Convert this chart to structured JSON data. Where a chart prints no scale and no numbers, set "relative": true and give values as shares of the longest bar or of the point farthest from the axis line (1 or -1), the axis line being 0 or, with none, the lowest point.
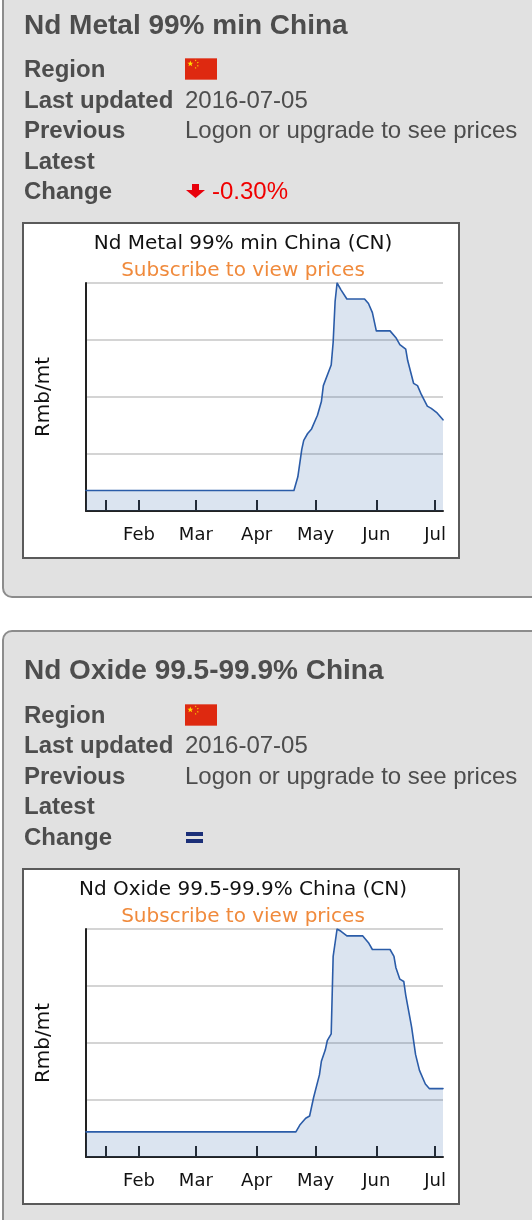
{
  "chart_data": [
    {
      "type": "other",
      "title": "Nd Metal 99% min China",
      "annotations": [
        "Region",
        "Last updated",
        "2016-07-05",
        "Previous",
        "Logon or upgrade to see prices",
        "Latest",
        "Change",
        "-0.30%"
      ]
    },
    {
      "type": "area",
      "title": "Nd Metal 99% min China (CN)",
      "subtitle": "Subscribe to view prices",
      "ylabel": "Rmb/mt",
      "relative": true,
      "x": [
        "--01-05",
        "--04-20",
        "--04-22",
        "--04-24",
        "--04-25",
        "--04-27",
        "--04-29",
        "--05-02",
        "--05-04",
        "--05-05",
        "--05-09",
        "--05-10",
        "--05-11",
        "--05-12",
        "--05-14",
        "--05-17",
        "--05-26",
        "--05-28",
        "--05-30",
        "--06-01",
        "--06-08",
        "--06-11",
        "--06-13",
        "--06-16",
        "--06-17",
        "--06-20",
        "--06-22",
        "--06-24",
        "--06-27",
        "--06-29",
        "--07-02",
        "--07-05"
      ],
      "values": [
        0.09,
        0.09,
        0.15,
        0.27,
        0.31,
        0.34,
        0.36,
        0.42,
        0.48,
        0.55,
        0.64,
        0.74,
        0.92,
        1,
        0.97,
        0.93,
        0.93,
        0.91,
        0.87,
        0.79,
        0.79,
        0.76,
        0.73,
        0.71,
        0.66,
        0.56,
        0.55,
        0.51,
        0.46,
        0.45,
        0.43,
        0.4
      ],
      "color": "#2b5ca8",
      "xlim": [
        "--01-05",
        "--07-05"
      ],
      "xticks": [
        {
          "value": "--01-15",
          "label": null
        },
        {
          "value": "--02-01",
          "label": "Feb"
        },
        {
          "value": "--03-01",
          "label": "Mar"
        },
        {
          "value": "--04-01",
          "label": "Apr"
        },
        {
          "value": "--05-01",
          "label": "May"
        },
        {
          "value": "--06-01",
          "label": "Jun"
        },
        {
          "value": "--07-01",
          "label": "Jul"
        }
      ],
      "grid": "y"
    },
    {
      "type": "other",
      "title": "Nd Oxide 99.5-99.9% China",
      "annotations": [
        "Region",
        "Last updated",
        "2016-07-05",
        "Previous",
        "Logon or upgrade to see prices",
        "Latest",
        "Change"
      ]
    },
    {
      "type": "area",
      "title": "Nd Oxide 99.5-99.9% China (CN)",
      "subtitle": "Subscribe to view prices",
      "ylabel": "Rmb/mt",
      "relative": true,
      "x": [
        "--01-05",
        "--04-21",
        "--04-23",
        "--04-26",
        "--04-28",
        "--04-30",
        "--05-03",
        "--05-04",
        "--05-06",
        "--05-07",
        "--05-09",
        "--05-10",
        "--05-12",
        "--05-14",
        "--05-17",
        "--05-25",
        "--05-28",
        "--05-30",
        "--06-08",
        "--06-10",
        "--06-11",
        "--06-13",
        "--06-15",
        "--06-16",
        "--06-19",
        "--06-21",
        "--06-23",
        "--06-26",
        "--06-28",
        "--07-05"
      ],
      "values": [
        0.11,
        0.11,
        0.14,
        0.17,
        0.18,
        0.26,
        0.36,
        0.42,
        0.47,
        0.51,
        0.54,
        0.88,
        1,
        0.99,
        0.97,
        0.97,
        0.94,
        0.91,
        0.91,
        0.88,
        0.83,
        0.78,
        0.77,
        0.71,
        0.57,
        0.45,
        0.38,
        0.32,
        0.3,
        0.3
      ],
      "color": "#2b5ca8",
      "xlim": [
        "--01-05",
        "--07-05"
      ],
      "xticks": [
        {
          "value": "--01-15",
          "label": null
        },
        {
          "value": "--02-01",
          "label": "Feb"
        },
        {
          "value": "--03-01",
          "label": "Mar"
        },
        {
          "value": "--04-01",
          "label": "Apr"
        },
        {
          "value": "--05-01",
          "label": "May"
        },
        {
          "value": "--06-01",
          "label": "Jun"
        },
        {
          "value": "--07-01",
          "label": "Jul"
        }
      ],
      "grid": "y"
    }
  ]
}
